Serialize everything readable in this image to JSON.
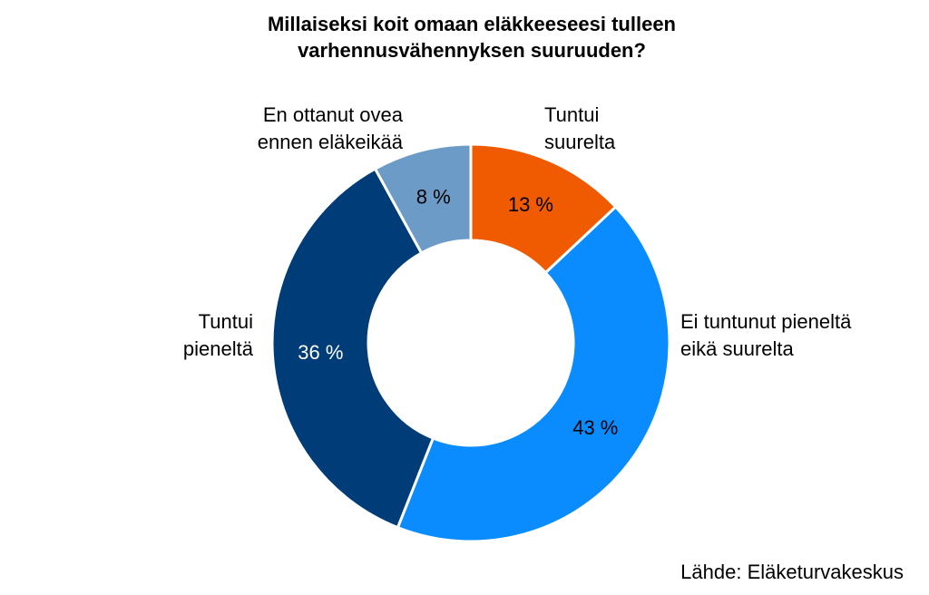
{
  "chart_data": {
    "type": "pie",
    "title": [
      "Millaiseksi koit omaan eläkkeeseesi tulleen",
      "varhennusvähennyksen suuruuden?"
    ],
    "categories": [
      [
        "Tuntui",
        "suurelta"
      ],
      [
        "Ei tuntunut pieneltä",
        "eikä suurelta"
      ],
      [
        "Tuntui",
        "pieneltä"
      ],
      [
        "En ottanut ovea",
        "ennen eläkeikää"
      ]
    ],
    "values": [
      13,
      43,
      36,
      8
    ],
    "data_labels": [
      "13 %",
      "43 %",
      "36 %",
      "8 %"
    ],
    "colors": [
      "#f05a00",
      "#0a8cff",
      "#003c78",
      "#6d9bc8"
    ],
    "label_colors": [
      "#000000",
      "#000000",
      "#ffffff",
      "#000000"
    ],
    "donut": true,
    "legend": "none"
  },
  "source": "Lähde: Eläketurvakeskus"
}
